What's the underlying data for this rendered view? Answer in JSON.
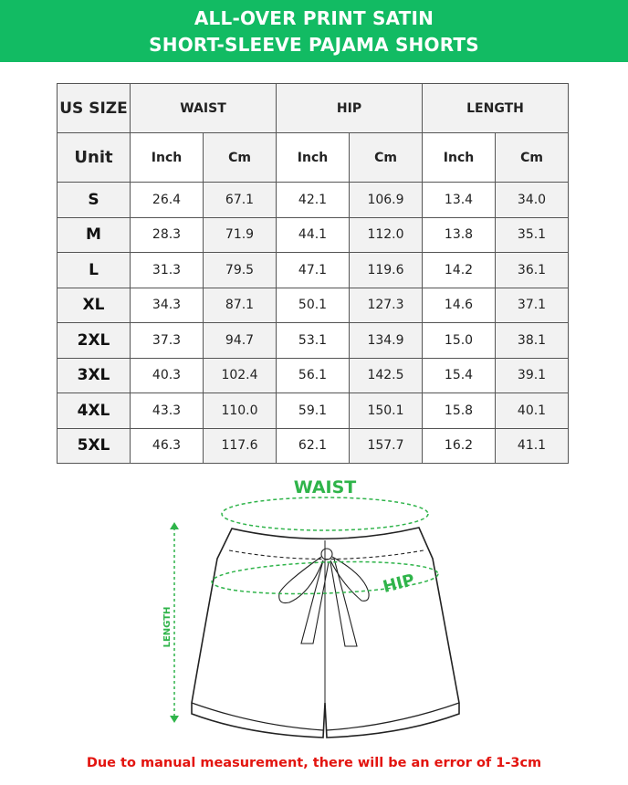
{
  "title": {
    "line1": "ALL-OVER PRINT SATIN",
    "line2": "SHORT-SLEEVE PAJAMA SHORTS"
  },
  "table": {
    "corner": "US SIZE",
    "groups": [
      "WAIST",
      "HIP",
      "LENGTH"
    ],
    "unit_label": "Unit",
    "units": [
      "Inch",
      "Cm",
      "Inch",
      "Cm",
      "Inch",
      "Cm"
    ],
    "rows": [
      {
        "size": "S",
        "values": [
          "26.4",
          "67.1",
          "42.1",
          "106.9",
          "13.4",
          "34.0"
        ]
      },
      {
        "size": "M",
        "values": [
          "28.3",
          "71.9",
          "44.1",
          "112.0",
          "13.8",
          "35.1"
        ]
      },
      {
        "size": "L",
        "values": [
          "31.3",
          "79.5",
          "47.1",
          "119.6",
          "14.2",
          "36.1"
        ]
      },
      {
        "size": "XL",
        "values": [
          "34.3",
          "87.1",
          "50.1",
          "127.3",
          "14.6",
          "37.1"
        ]
      },
      {
        "size": "2XL",
        "values": [
          "37.3",
          "94.7",
          "53.1",
          "134.9",
          "15.0",
          "38.1"
        ]
      },
      {
        "size": "3XL",
        "values": [
          "40.3",
          "102.4",
          "56.1",
          "142.5",
          "15.4",
          "39.1"
        ]
      },
      {
        "size": "4XL",
        "values": [
          "43.3",
          "110.0",
          "59.1",
          "150.1",
          "15.8",
          "40.1"
        ]
      },
      {
        "size": "5XL",
        "values": [
          "46.3",
          "117.6",
          "62.1",
          "157.7",
          "16.2",
          "41.1"
        ]
      }
    ]
  },
  "diagram": {
    "waist_label": "WAIST",
    "hip_label": "HIP",
    "length_label": "LENGTH",
    "accent_color": "#2fb44a"
  },
  "note": "Due to manual measurement, there will be an error of 1-3cm"
}
